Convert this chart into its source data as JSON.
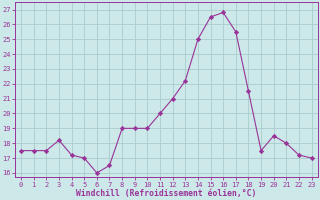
{
  "x": [
    0,
    1,
    2,
    3,
    4,
    5,
    6,
    7,
    8,
    9,
    10,
    11,
    12,
    13,
    14,
    15,
    16,
    17,
    18,
    19,
    20,
    21,
    22,
    23
  ],
  "y": [
    17.5,
    17.5,
    17.5,
    18.2,
    17.2,
    17.0,
    16.0,
    16.5,
    19.0,
    19.0,
    19.0,
    20.0,
    21.0,
    22.2,
    25.0,
    26.5,
    26.8,
    25.5,
    21.5,
    17.5,
    18.5,
    18.0,
    17.2,
    17.0
  ],
  "line_color": "#993399",
  "marker": "D",
  "marker_size": 2.2,
  "bg_color": "#cce8e8",
  "grid_color": "#aacccc",
  "xlabel": "Windchill (Refroidissement éolien,°C)",
  "xlabel_color": "#993399",
  "ylabel_ticks": [
    16,
    17,
    18,
    19,
    20,
    21,
    22,
    23,
    24,
    25,
    26,
    27
  ],
  "xticks": [
    0,
    1,
    2,
    3,
    4,
    5,
    6,
    7,
    8,
    9,
    10,
    11,
    12,
    13,
    14,
    15,
    16,
    17,
    18,
    19,
    20,
    21,
    22,
    23
  ],
  "ylim": [
    15.7,
    27.5
  ],
  "xlim": [
    -0.5,
    23.5
  ],
  "tick_color": "#993399",
  "axis_color": "#993399",
  "tick_fontsize": 5.0,
  "xlabel_fontsize": 5.8
}
